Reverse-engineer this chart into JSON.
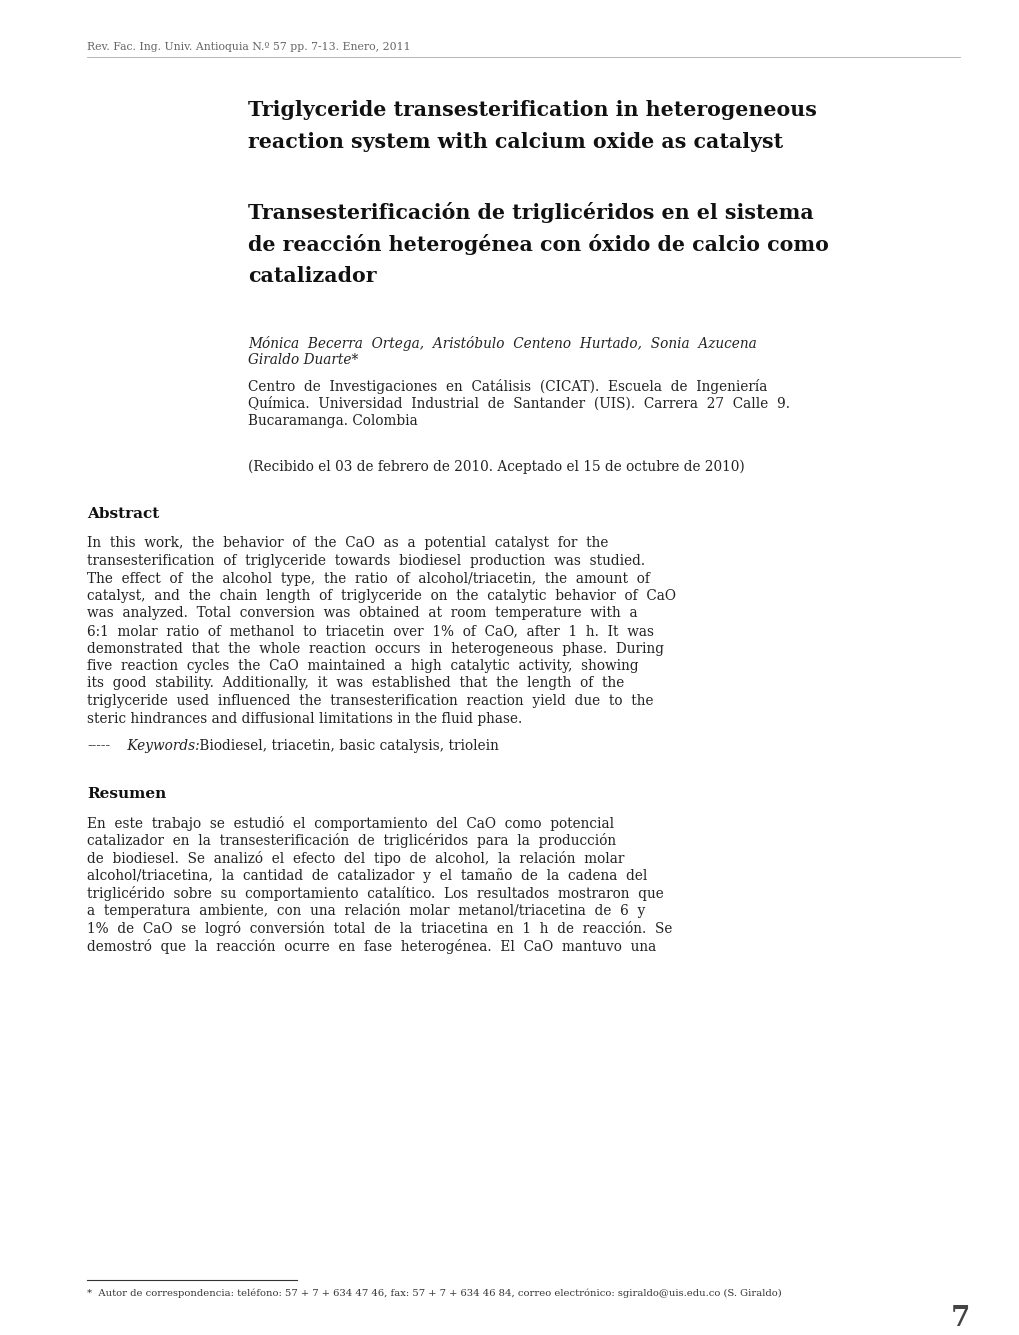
{
  "bg_color": "#ffffff",
  "header_text": "Rev. Fac. Ing. Univ. Antioquia N.º 57 pp. 7-13. Enero, 2011",
  "title_en_line1": "Triglyceride transesterification in heterogeneous",
  "title_en_line2": "reaction system with calcium oxide as catalyst",
  "title_es_line1": "Transesterificación de triglicéridos en el sistema",
  "title_es_line2": "de reacción heterogénea con óxido de calcio como",
  "title_es_line3": "catalizador",
  "authors_line1": "Mónica  Becerra  Ortega,  Aristóbulo  Centeno  Hurtado,  Sonia  Azucena",
  "authors_line2": "Giraldo Duarte*",
  "affil_line1": "Centro  de  Investigaciones  en  Catálisis  (CICAT).  Escuela  de  Ingeniería",
  "affil_line2": "Química.  Universidad  Industrial  de  Santander  (UIS).  Carrera  27  Calle  9.",
  "affil_line3": "Bucaramanga. Colombia",
  "received": "(Recibido el 03 de febrero de 2010. Aceptado el 15 de octubre de 2010)",
  "abstract_heading": "Abstract",
  "abstract_lines": [
    "In  this  work,  the  behavior  of  the  CaO  as  a  potential  catalyst  for  the",
    "transesterification  of  triglyceride  towards  biodiesel  production  was  studied.",
    "The  effect  of  the  alcohol  type,  the  ratio  of  alcohol/triacetin,  the  amount  of",
    "catalyst,  and  the  chain  length  of  triglyceride  on  the  catalytic  behavior  of  CaO",
    "was  analyzed.  Total  conversion  was  obtained  at  room  temperature  with  a",
    "6:1  molar  ratio  of  methanol  to  triacetin  over  1%  of  CaO,  after  1  h.  It  was",
    "demonstrated  that  the  whole  reaction  occurs  in  heterogeneous  phase.  During",
    "five  reaction  cycles  the  CaO  maintained  a  high  catalytic  activity,  showing",
    "its  good  stability.  Additionally,  it  was  established  that  the  length  of  the",
    "triglyceride  used  influenced  the  transesterification  reaction  yield  due  to  the",
    "steric hindrances and diffusional limitations in the fluid phase."
  ],
  "keywords_dashes": "-----",
  "keywords_label": " Keywords:",
  "keywords_body": " Biodiesel, triacetin, basic catalysis, triolein",
  "resumen_heading": "Resumen",
  "resumen_lines": [
    "En  este  trabajo  se  estudió  el  comportamiento  del  CaO  como  potencial",
    "catalizador  en  la  transesterificación  de  triglicéridos  para  la  producción",
    "de  biodiesel.  Se  analizó  el  efecto  del  tipo  de  alcohol,  la  relación  molar",
    "alcohol/triacetina,  la  cantidad  de  catalizador  y  el  tamaño  de  la  cadena  del",
    "triglicérido  sobre  su  comportamiento  catalítico.  Los  resultados  mostraron  que",
    "a  temperatura  ambiente,  con  una  relación  molar  metanol/triacetina  de  6  y",
    "1%  de  CaO  se  logró  conversión  total  de  la  triacetina  en  1  h  de  reacción.  Se",
    "demostró  que  la  reacción  ocurre  en  fase  heterogénea.  El  CaO  mantuvo  una"
  ],
  "footnote_text": "*  Autor de correspondencia: teléfono: 57 + 7 + 634 47 46, fax: 57 + 7 + 634 46 84, correo electrónico: sgiraldo@uis.edu.co (S. Giraldo)",
  "page_number": "7"
}
